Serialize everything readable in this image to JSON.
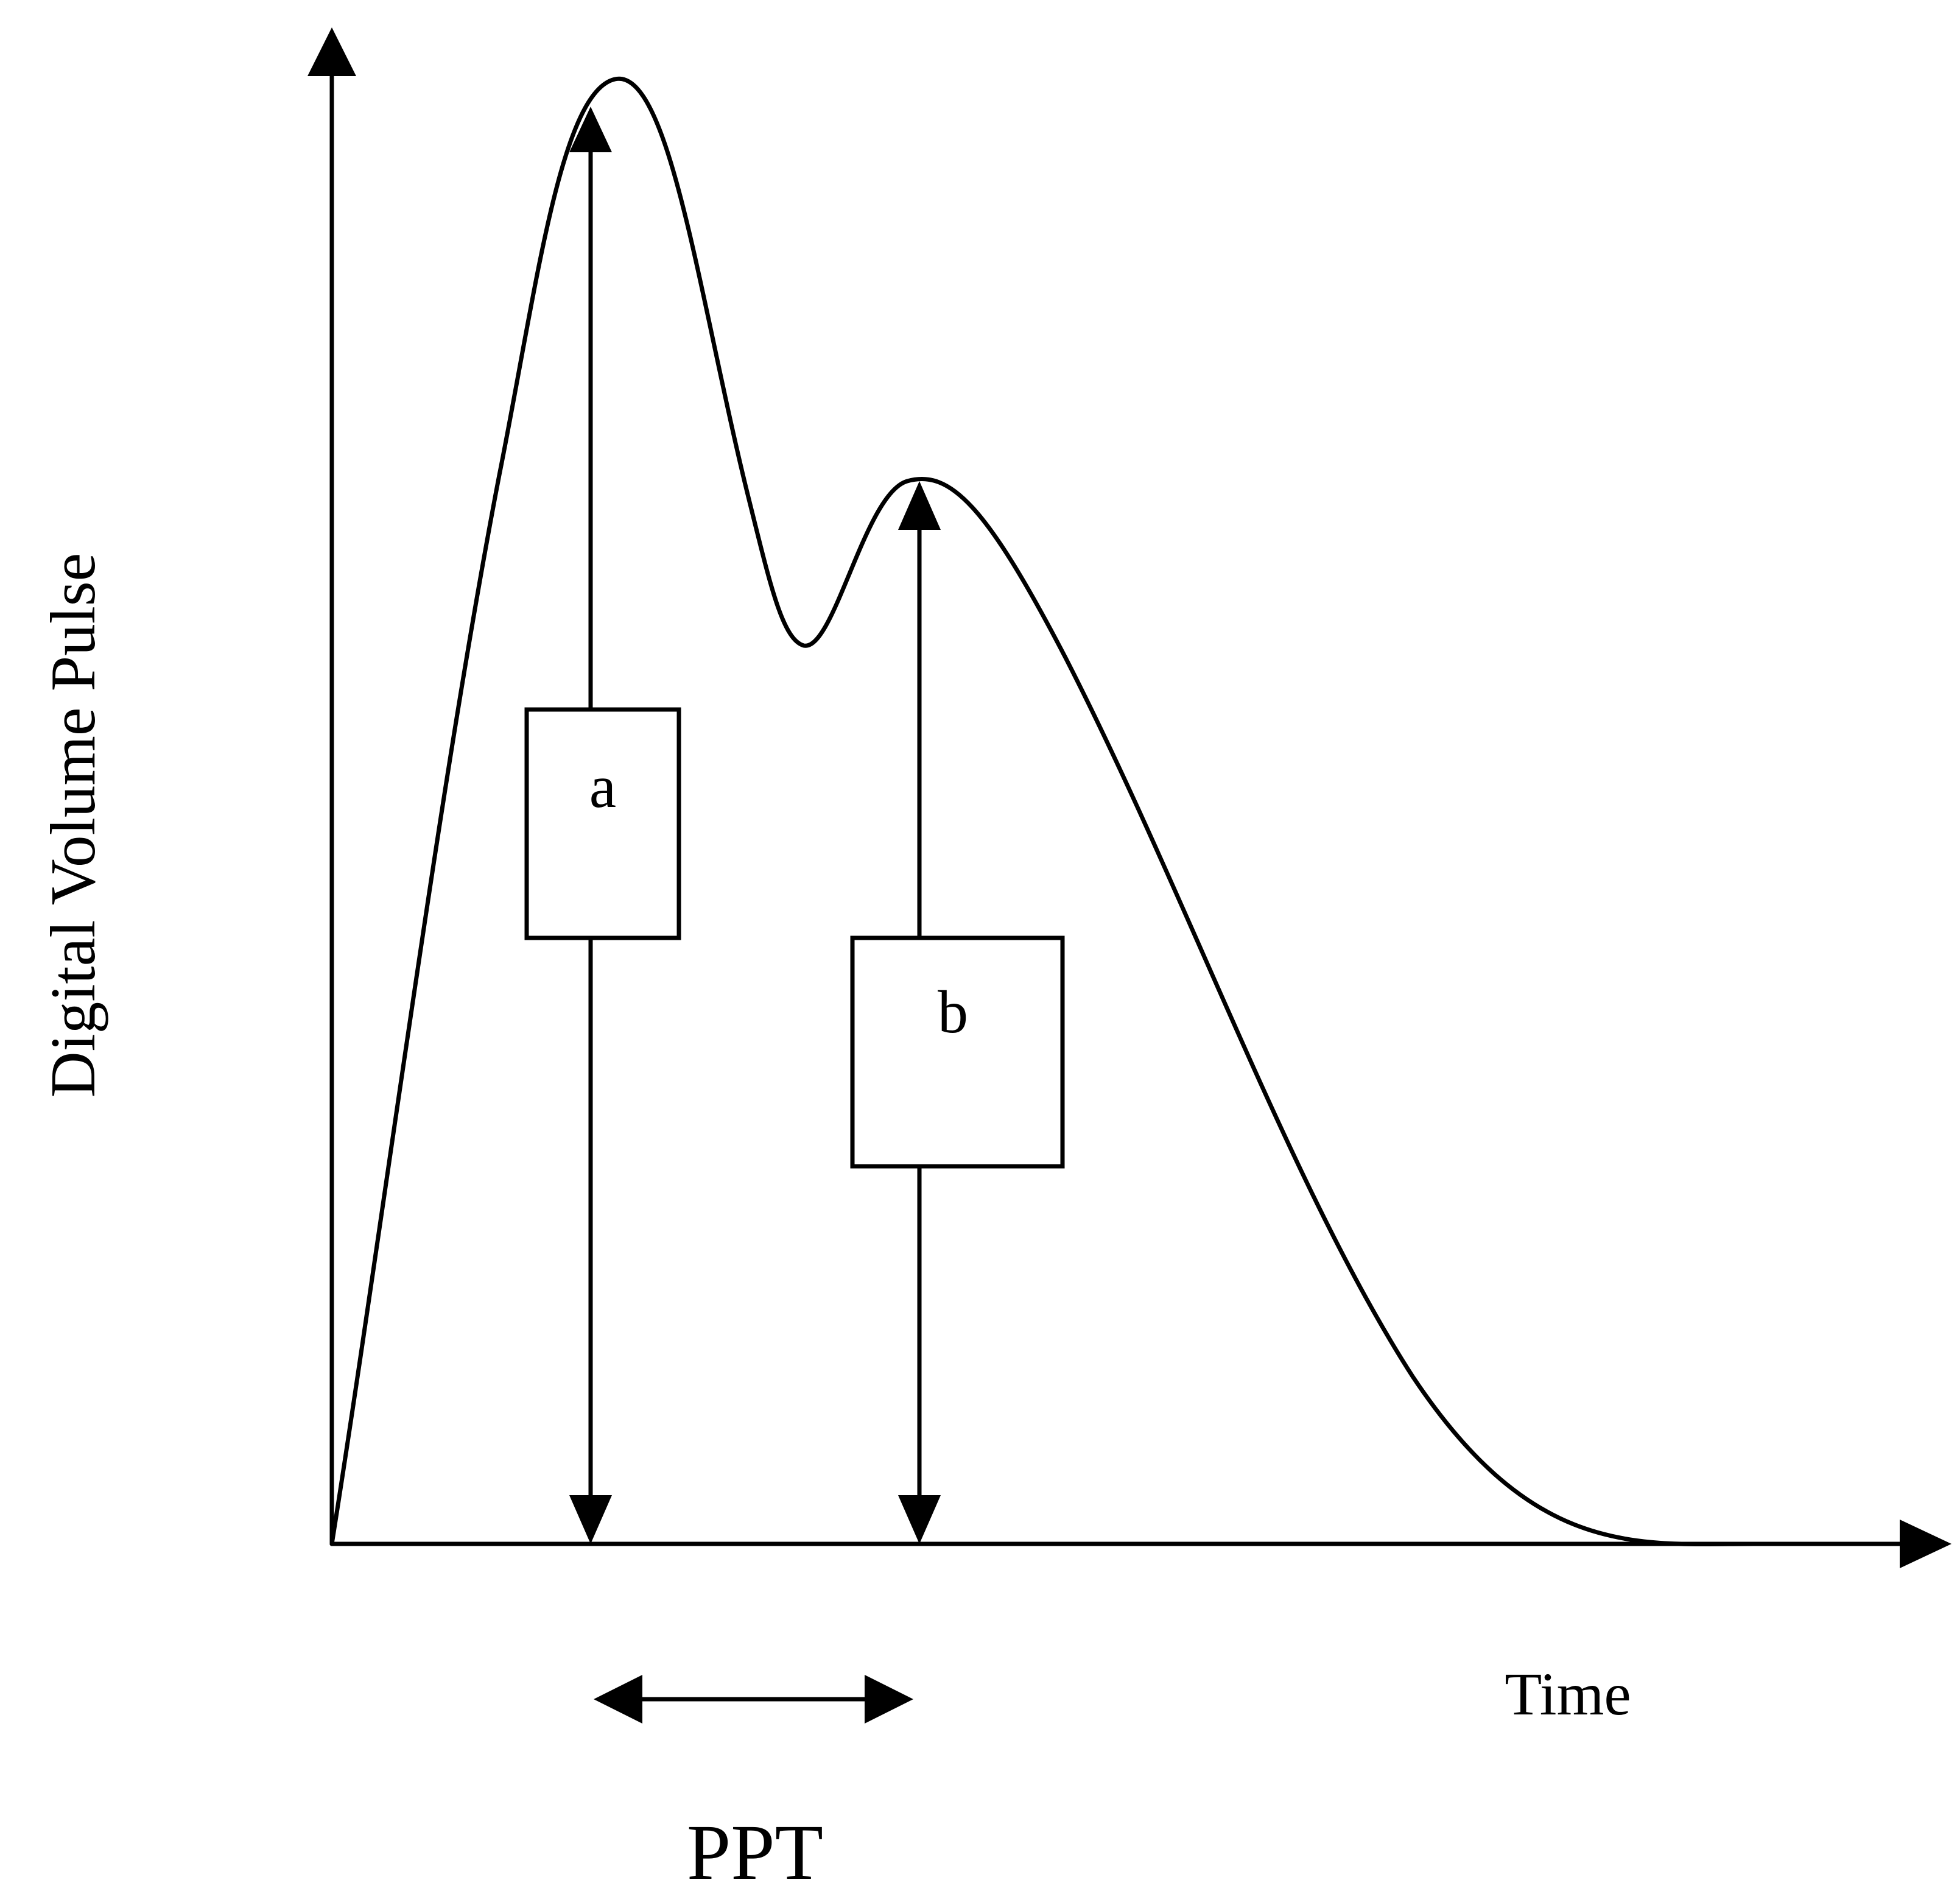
{
  "diagram": {
    "y_axis_label": "Digital Volume Pulse",
    "x_axis_label": "Time",
    "interval_label": "PPT",
    "boxes": {
      "a": {
        "label": "a"
      },
      "b": {
        "label": "b"
      }
    }
  }
}
